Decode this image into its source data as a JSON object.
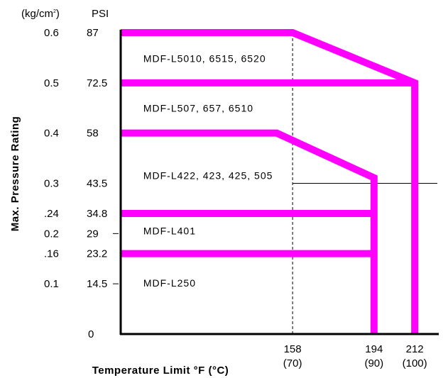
{
  "chart_data": {
    "type": "line",
    "ylabel": "Max. Pressure Rating",
    "xlabel": "Temperature Limit  °F  (°C)",
    "units": {
      "kg": "(kg/cm",
      "kg_sup": "2",
      "kg_close": ")",
      "psi": "PSI"
    },
    "x_ticks": [
      {
        "f": "158",
        "c": "(70)",
        "value": 158
      },
      {
        "f": "194",
        "c": "(90)",
        "value": 194
      },
      {
        "f": "212",
        "c": "(100)",
        "value": 212
      }
    ],
    "y_ticks": [
      {
        "psi": "87",
        "kg": "0.6",
        "value": 87
      },
      {
        "psi": "72.5",
        "kg": "0.5",
        "value": 72.5
      },
      {
        "psi": "58",
        "kg": "0.4",
        "value": 58
      },
      {
        "psi": "43.5",
        "kg": "0.3",
        "value": 43.5
      },
      {
        "psi": "34.8",
        "kg": ".24",
        "value": 34.8
      },
      {
        "psi": "29",
        "kg": "0.2",
        "value": 29
      },
      {
        "psi": "23.2",
        "kg": ".16",
        "value": 23.2
      },
      {
        "psi": "14.5",
        "kg": "0.1",
        "value": 14.5
      },
      {
        "psi": "0",
        "kg": "",
        "value": 0
      }
    ],
    "xlim": [
      82,
      222
    ],
    "ylim": [
      0,
      87
    ],
    "series": [
      {
        "label": "MDF-L5010, 6515, 6520",
        "label_at": {
          "x": 92,
          "y": 79.5
        },
        "points": [
          [
            82,
            87
          ],
          [
            158,
            87
          ],
          [
            212,
            72.5
          ],
          [
            212,
            0
          ]
        ]
      },
      {
        "label": "MDF-L507, 657, 6510",
        "label_at": {
          "x": 92,
          "y": 65.2
        },
        "points": [
          [
            82,
            72.5
          ],
          [
            212,
            72.5
          ]
        ]
      },
      {
        "label": "MDF-L422, 423, 425, 505",
        "label_at": {
          "x": 92,
          "y": 45.8
        },
        "points": [
          [
            82,
            58
          ],
          [
            151,
            58
          ],
          [
            194,
            45.1
          ],
          [
            194,
            0
          ]
        ]
      },
      {
        "label": "MDF-L401",
        "label_at": {
          "x": 92,
          "y": 29.8
        },
        "points": [
          [
            82,
            34.8
          ],
          [
            194,
            34.8
          ]
        ]
      },
      {
        "label": "MDF-L250",
        "label_at": {
          "x": 92,
          "y": 14.7
        },
        "points": [
          [
            82,
            23.2
          ],
          [
            194,
            23.2
          ]
        ]
      }
    ],
    "ref_lines": [
      {
        "orient": "vertical",
        "value": 158,
        "from": 0,
        "to": 87,
        "style": "dashed"
      },
      {
        "orient": "horizontal",
        "value": 43.5,
        "from": 158,
        "to": 222,
        "style": "solid"
      }
    ],
    "minor_ticks": [
      {
        "y": 29
      },
      {
        "y": 14.5
      }
    ],
    "colors": {
      "series": "#ff00ff",
      "axis": "#000000"
    }
  }
}
